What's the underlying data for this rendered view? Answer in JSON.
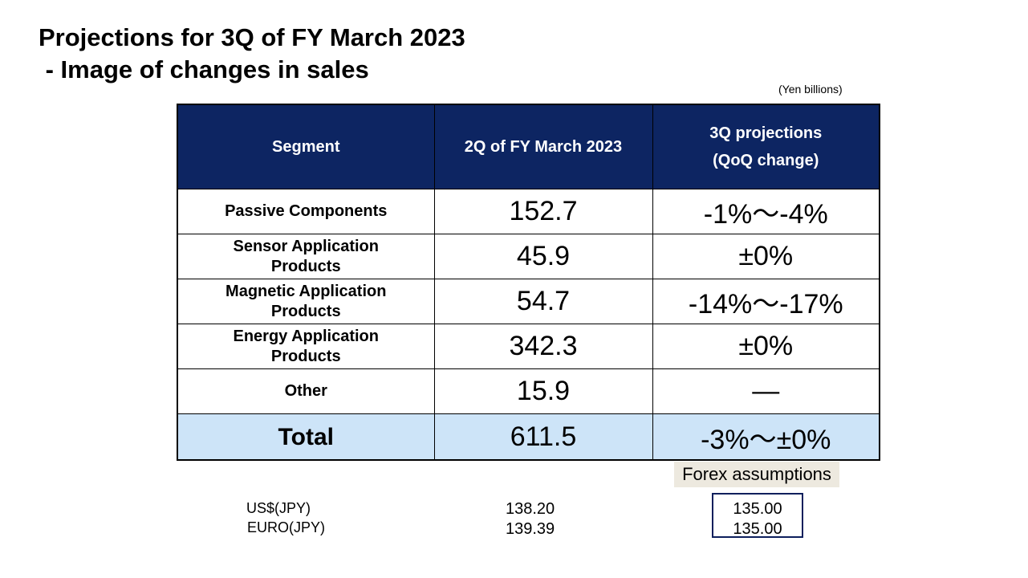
{
  "title": {
    "line1": "Projections for 3Q of FY March 2023",
    "line2": " - Image of changes in sales"
  },
  "unit_note": "(Yen billions)",
  "table": {
    "headers": {
      "segment": "Segment",
      "q2": "2Q of FY March 2023",
      "q3_line1": "3Q projections",
      "q3_line2": "(QoQ change)"
    },
    "rows": [
      {
        "segment_line1": "Passive Components",
        "segment_line2": "",
        "q2": "152.7",
        "q3": "-1%～-4%"
      },
      {
        "segment_line1": "Sensor Application",
        "segment_line2": "Products",
        "q2": "45.9",
        "q3": "±0%"
      },
      {
        "segment_line1": "Magnetic Application",
        "segment_line2": "Products",
        "q2": "54.7",
        "q3": "-14%～-17%"
      },
      {
        "segment_line1": "Energy Application",
        "segment_line2": "Products",
        "q2": "342.3",
        "q3": "±0%"
      },
      {
        "segment_line1": "Other",
        "segment_line2": "",
        "q2": "15.9",
        "q3": "―"
      }
    ],
    "total": {
      "segment": "Total",
      "q2": "611.5",
      "q3": "-3%～±0%"
    }
  },
  "forex": {
    "label": "Forex assumptions",
    "currencies": [
      "US$(JPY)",
      "EURO(JPY)"
    ],
    "actual": [
      "138.20",
      "139.39"
    ],
    "assumed": [
      "135.00",
      "135.00"
    ]
  },
  "colors": {
    "header_bg": "#0d2562",
    "total_bg": "#cde4f8",
    "forex_label_bg": "#ede9df"
  }
}
